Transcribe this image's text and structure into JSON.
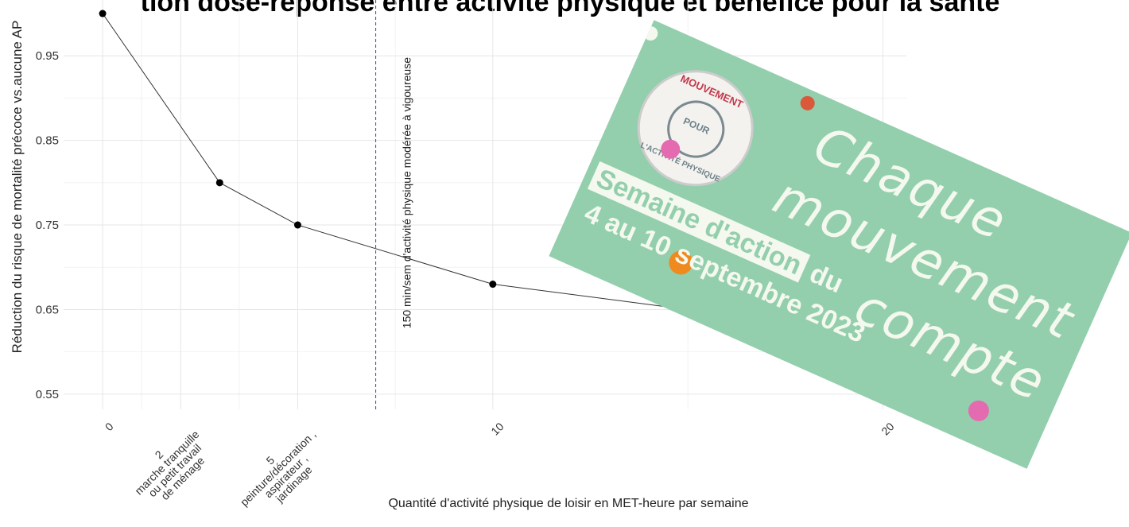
{
  "chart_data": {
    "type": "line",
    "title": "tion dose-réponse entre activité physique et bénéfice pour la santé",
    "y_label": "Réduction du risque de mortalité précoce vs.aucune AP",
    "x_label": "Quantité d'activité physique de loisir en MET-heure par semaine",
    "x": [
      0,
      3,
      5,
      10,
      15
    ],
    "values": [
      1.0,
      0.8,
      0.75,
      0.68,
      0.65
    ],
    "color": "#333333",
    "xlim": [
      -1,
      20.6
    ],
    "ylim": [
      0.532,
      1.016
    ],
    "xticks": [
      0,
      {
        "value": 2,
        "label": "2\nmarche tranquille\nou petit travail\nde ménage"
      },
      {
        "value": 5,
        "label": "5\npeinture/décoration ,\naspirateur ,\njardinage"
      },
      10,
      20
    ],
    "yticks": [
      0.55,
      0.65,
      0.75,
      0.85,
      0.95
    ],
    "grid": true,
    "reference_line": {
      "x": 7,
      "label": "150 min/sem d'activité physique modérée à vigoureuse",
      "color": "#3344cc"
    }
  },
  "poster": {
    "logo_top": "MOUVEMENT",
    "logo_center": "POUR",
    "logo_bottom": "L'ACTIVITÉ PHYSIQUE",
    "headline": [
      "Chaque",
      "mouvement",
      "compte"
    ],
    "event": "Semaine d'action",
    "event_suffix": "du",
    "dates": "4 au 10 septembre 2023"
  }
}
